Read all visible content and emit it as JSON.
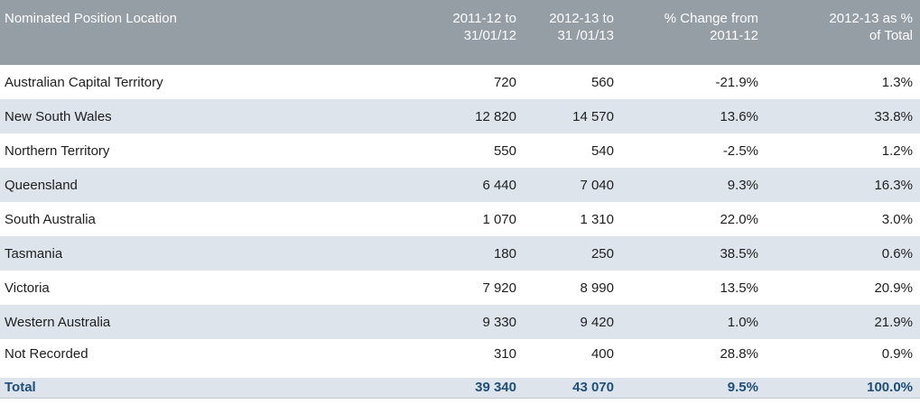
{
  "table": {
    "columns": [
      {
        "label": "Nominated Position Location"
      },
      {
        "label": "2011-12 to\n31/01/12"
      },
      {
        "label": "2012-13 to\n31 /01/13"
      },
      {
        "label": "% Change from\n2011-12"
      },
      {
        "label": "2012-13  as %\nof Total"
      }
    ],
    "rows": [
      {
        "location": "Australian Capital Territory",
        "v2011": "720",
        "v2012": "560",
        "change": "-21.9%",
        "pct_total": "1.3%"
      },
      {
        "location": "New South Wales",
        "v2011": "12 820",
        "v2012": "14 570",
        "change": "13.6%",
        "pct_total": "33.8%"
      },
      {
        "location": "Northern Territory",
        "v2011": "550",
        "v2012": "540",
        "change": "-2.5%",
        "pct_total": "1.2%"
      },
      {
        "location": "Queensland",
        "v2011": "6 440",
        "v2012": "7 040",
        "change": "9.3%",
        "pct_total": "16.3%"
      },
      {
        "location": "South Australia",
        "v2011": "1 070",
        "v2012": "1 310",
        "change": "22.0%",
        "pct_total": "3.0%"
      },
      {
        "location": "Tasmania",
        "v2011": "180",
        "v2012": "250",
        "change": "38.5%",
        "pct_total": "0.6%"
      },
      {
        "location": "Victoria",
        "v2011": "7 920",
        "v2012": "8 990",
        "change": "13.5%",
        "pct_total": "20.9%"
      },
      {
        "location": "Western Australia",
        "v2011": "9 330",
        "v2012": "9 420",
        "change": "1.0%",
        "pct_total": "21.9%"
      },
      {
        "location": "Not Recorded",
        "v2011": "310",
        "v2012": "400",
        "change": "28.8%",
        "pct_total": "0.9%"
      }
    ],
    "total": {
      "location": "Total",
      "v2011": "39 340",
      "v2012": "43 070",
      "change": "9.5%",
      "pct_total": "100.0%"
    }
  },
  "colors": {
    "header_bg": "#959da5",
    "header_text": "#ffffff",
    "stripe_bg": "#dde4ec",
    "body_text": "#1f1f1f",
    "total_text": "#1f4e79"
  }
}
